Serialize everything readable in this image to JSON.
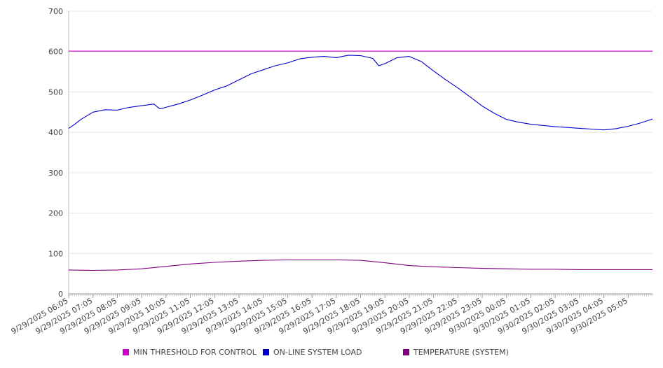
{
  "chart_data": {
    "type": "line",
    "title": "",
    "xlabel": "",
    "ylabel": "",
    "ylim": [
      0,
      700
    ],
    "yticks": [
      0,
      100,
      200,
      300,
      400,
      500,
      600,
      700
    ],
    "x_tick_labels": [
      "9/29/2025 06:05",
      "9/29/2025 07:05",
      "9/29/2025 08:05",
      "9/29/2025 09:05",
      "9/29/2025 10:05",
      "9/29/2025 11:05",
      "9/29/2025 12:05",
      "9/29/2025 13:05",
      "9/29/2025 14:05",
      "9/29/2025 15:05",
      "9/29/2025 16:05",
      "9/29/2025 17:05",
      "9/29/2025 18:05",
      "9/29/2025 19:05",
      "9/29/2025 20:05",
      "9/29/2025 21:05",
      "9/29/2025 22:05",
      "9/29/2025 23:05",
      "9/30/2025 00:05",
      "9/30/2025 01:05",
      "9/30/2025 02:05",
      "9/30/2025 03:05",
      "9/30/2025 04:05",
      "9/30/2025 05:05"
    ],
    "x_range": [
      "9/29/2025 06:05",
      "9/30/2025 06:05"
    ],
    "grid": "horizontal",
    "legend_position": "bottom",
    "series": [
      {
        "name": "MIN THRESHOLD FOR CONTROL",
        "color": "#cc00cc",
        "x": [
          "9/29/2025 06:05",
          "9/30/2025 06:05"
        ],
        "values": [
          601,
          601
        ]
      },
      {
        "name": "ON-LINE SYSTEM LOAD",
        "color": "#0000cc",
        "x": [
          "9/29/2025 06:05",
          "9/29/2025 06:20",
          "9/29/2025 06:35",
          "9/29/2025 07:05",
          "9/29/2025 07:35",
          "9/29/2025 08:05",
          "9/29/2025 08:35",
          "9/29/2025 09:05",
          "9/29/2025 09:35",
          "9/29/2025 09:50",
          "9/29/2025 10:05",
          "9/29/2025 10:35",
          "9/29/2025 11:05",
          "9/29/2025 11:35",
          "9/29/2025 12:05",
          "9/29/2025 12:35",
          "9/29/2025 13:05",
          "9/29/2025 13:35",
          "9/29/2025 14:05",
          "9/29/2025 14:35",
          "9/29/2025 15:05",
          "9/29/2025 15:35",
          "9/29/2025 16:05",
          "9/29/2025 16:35",
          "9/29/2025 17:05",
          "9/29/2025 17:35",
          "9/29/2025 18:05",
          "9/29/2025 18:35",
          "9/29/2025 18:50",
          "9/29/2025 19:05",
          "9/29/2025 19:35",
          "9/29/2025 20:05",
          "9/29/2025 20:35",
          "9/29/2025 21:05",
          "9/29/2025 21:35",
          "9/29/2025 22:05",
          "9/29/2025 22:35",
          "9/29/2025 23:05",
          "9/29/2025 23:35",
          "9/30/2025 00:05",
          "9/30/2025 00:35",
          "9/30/2025 01:05",
          "9/30/2025 01:35",
          "9/30/2025 02:05",
          "9/30/2025 02:35",
          "9/30/2025 03:05",
          "9/30/2025 03:35",
          "9/30/2025 04:05",
          "9/30/2025 04:35",
          "9/30/2025 05:05",
          "9/30/2025 05:35",
          "9/30/2025 06:05"
        ],
        "values": [
          410,
          420,
          432,
          450,
          456,
          455,
          462,
          466,
          470,
          458,
          462,
          470,
          480,
          492,
          505,
          515,
          530,
          545,
          555,
          565,
          572,
          582,
          586,
          588,
          585,
          591,
          590,
          583,
          565,
          570,
          585,
          588,
          575,
          552,
          530,
          510,
          488,
          465,
          447,
          432,
          425,
          420,
          417,
          414,
          412,
          410,
          408,
          406,
          409,
          415,
          423,
          433
        ]
      },
      {
        "name": "TEMPERATURE (SYSTEM)",
        "color": "#800080",
        "x": [
          "9/29/2025 06:05",
          "9/29/2025 07:05",
          "9/29/2025 08:05",
          "9/29/2025 09:05",
          "9/29/2025 10:05",
          "9/29/2025 11:05",
          "9/29/2025 12:05",
          "9/29/2025 13:05",
          "9/29/2025 14:05",
          "9/29/2025 15:05",
          "9/29/2025 16:05",
          "9/29/2025 17:05",
          "9/29/2025 18:05",
          "9/29/2025 19:05",
          "9/29/2025 20:05",
          "9/29/2025 21:05",
          "9/29/2025 22:05",
          "9/29/2025 23:05",
          "9/30/2025 00:05",
          "9/30/2025 01:05",
          "9/30/2025 02:05",
          "9/30/2025 03:05",
          "9/30/2025 04:05",
          "9/30/2025 05:05",
          "9/30/2025 06:05"
        ],
        "values": [
          59,
          58,
          59,
          62,
          68,
          74,
          78,
          81,
          83,
          84,
          84,
          84,
          83,
          77,
          70,
          67,
          65,
          63,
          62,
          61,
          61,
          60,
          60,
          60,
          60
        ]
      }
    ]
  }
}
